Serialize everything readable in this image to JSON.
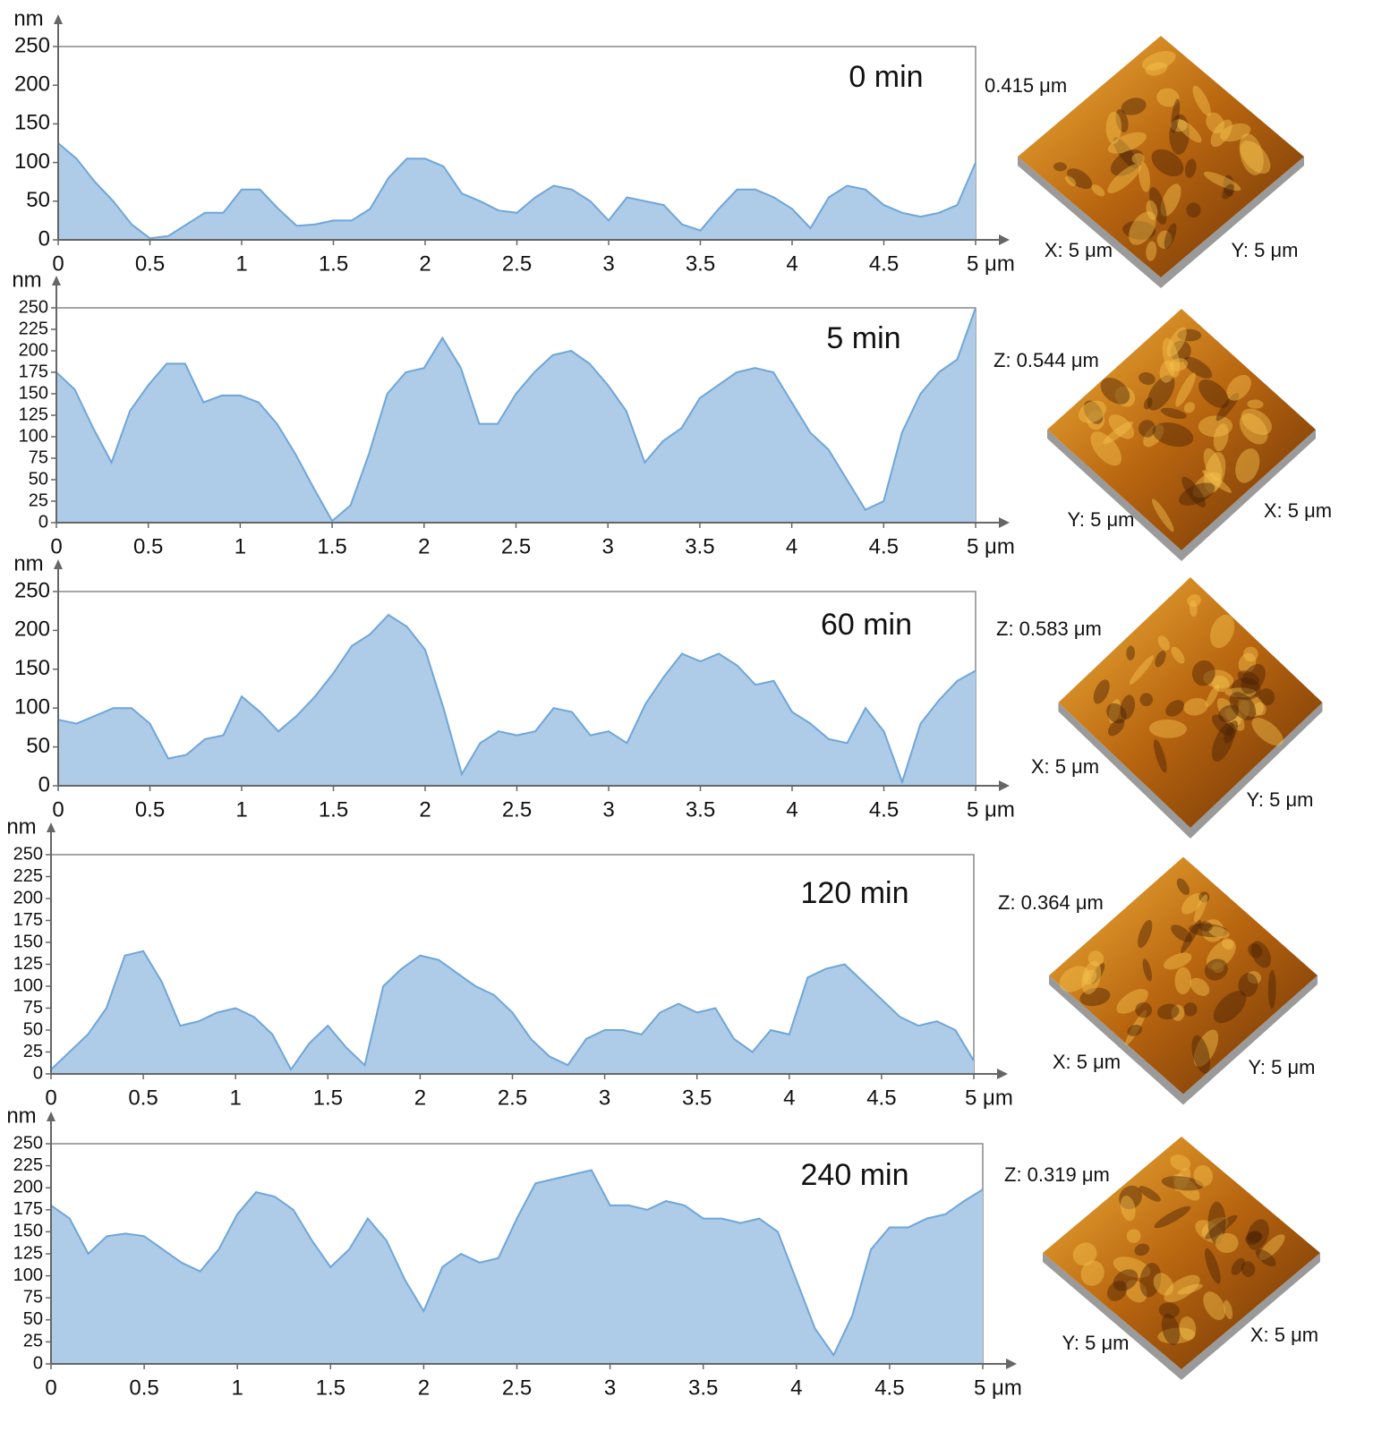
{
  "chart_data": [
    {
      "type": "area",
      "title": "0 min",
      "ylabel": "nm",
      "color": "#6fa6d8",
      "fill": "#aecbe8",
      "xlim": [
        0,
        5
      ],
      "ylim": [
        0,
        250
      ],
      "xticks": [
        0,
        0.5,
        1,
        1.5,
        2,
        2.5,
        3,
        3.5,
        4,
        4.5,
        {
          "value": 5,
          "label": "5 μm"
        }
      ],
      "yticks": [
        0,
        50,
        100,
        150,
        200,
        250
      ],
      "x": [
        0,
        0.1,
        0.2,
        0.3,
        0.4,
        0.5,
        0.6,
        0.7,
        0.8,
        0.9,
        1,
        1.1,
        1.2,
        1.3,
        1.4,
        1.5,
        1.6,
        1.7,
        1.8,
        1.9,
        2,
        2.1,
        2.2,
        2.3,
        2.4,
        2.5,
        2.6,
        2.7,
        2.8,
        2.9,
        3,
        3.1,
        3.2,
        3.3,
        3.4,
        3.5,
        3.6,
        3.7,
        3.8,
        3.9,
        4,
        4.1,
        4.2,
        4.3,
        4.4,
        4.5,
        4.6,
        4.7,
        4.8,
        4.9,
        5
      ],
      "values": [
        125,
        105,
        75,
        50,
        20,
        2,
        5,
        20,
        35,
        35,
        65,
        65,
        40,
        18,
        20,
        25,
        25,
        40,
        80,
        105,
        105,
        95,
        60,
        50,
        38,
        35,
        55,
        70,
        65,
        50,
        25,
        55,
        50,
        45,
        20,
        12,
        40,
        65,
        65,
        55,
        40,
        15,
        55,
        70,
        65,
        45,
        35,
        30,
        35,
        45,
        100
      ],
      "annotations": [
        "0.415 μm",
        "X: 5 μm",
        "Y: 5 μm"
      ]
    },
    {
      "type": "area",
      "title": "5 min",
      "ylabel": "nm",
      "color": "#6fa6d8",
      "fill": "#aecbe8",
      "xlim": [
        0,
        5
      ],
      "ylim": [
        0,
        250
      ],
      "xticks": [
        0,
        0.5,
        1,
        1.5,
        2,
        2.5,
        3,
        3.5,
        4,
        4.5,
        {
          "value": 5,
          "label": "5 μm"
        }
      ],
      "yticks": [
        0,
        25,
        50,
        75,
        100,
        125,
        150,
        175,
        200,
        225,
        250
      ],
      "x": [
        0,
        0.1,
        0.2,
        0.3,
        0.4,
        0.5,
        0.6,
        0.7,
        0.8,
        0.9,
        1,
        1.1,
        1.2,
        1.3,
        1.4,
        1.5,
        1.6,
        1.7,
        1.8,
        1.9,
        2,
        2.1,
        2.2,
        2.3,
        2.4,
        2.5,
        2.6,
        2.7,
        2.8,
        2.9,
        3,
        3.1,
        3.2,
        3.3,
        3.4,
        3.5,
        3.6,
        3.7,
        3.8,
        3.9,
        4,
        4.1,
        4.2,
        4.3,
        4.4,
        4.5,
        4.6,
        4.7,
        4.8,
        4.9,
        5
      ],
      "values": [
        175,
        155,
        110,
        70,
        130,
        160,
        185,
        185,
        140,
        148,
        148,
        140,
        115,
        80,
        40,
        2,
        20,
        80,
        150,
        175,
        180,
        215,
        180,
        115,
        115,
        150,
        175,
        195,
        200,
        185,
        160,
        130,
        70,
        95,
        110,
        145,
        160,
        175,
        180,
        175,
        140,
        105,
        85,
        50,
        15,
        25,
        105,
        150,
        175,
        190,
        250
      ],
      "annotations": [
        "Z: 0.544 μm",
        "Y: 5 μm",
        "X: 5 μm"
      ]
    },
    {
      "type": "area",
      "title": "60 min",
      "ylabel": "nm",
      "color": "#6fa6d8",
      "fill": "#aecbe8",
      "xlim": [
        0,
        5
      ],
      "ylim": [
        0,
        250
      ],
      "xticks": [
        0,
        0.5,
        1,
        1.5,
        2,
        2.5,
        3,
        3.5,
        4,
        4.5,
        {
          "value": 5,
          "label": "5 μm"
        }
      ],
      "yticks": [
        0,
        50,
        100,
        150,
        200,
        250
      ],
      "x": [
        0,
        0.1,
        0.2,
        0.3,
        0.4,
        0.5,
        0.6,
        0.7,
        0.8,
        0.9,
        1,
        1.1,
        1.2,
        1.3,
        1.4,
        1.5,
        1.6,
        1.7,
        1.8,
        1.9,
        2,
        2.1,
        2.2,
        2.3,
        2.4,
        2.5,
        2.6,
        2.7,
        2.8,
        2.9,
        3,
        3.1,
        3.2,
        3.3,
        3.4,
        3.5,
        3.6,
        3.7,
        3.8,
        3.9,
        4,
        4.1,
        4.2,
        4.3,
        4.4,
        4.5,
        4.6,
        4.7,
        4.8,
        4.9,
        5
      ],
      "values": [
        85,
        80,
        90,
        100,
        100,
        80,
        35,
        40,
        60,
        65,
        115,
        95,
        70,
        90,
        115,
        145,
        180,
        195,
        220,
        205,
        175,
        100,
        15,
        55,
        70,
        65,
        70,
        100,
        95,
        65,
        70,
        55,
        105,
        140,
        170,
        160,
        170,
        155,
        130,
        135,
        95,
        80,
        60,
        55,
        100,
        70,
        5,
        80,
        110,
        135,
        148
      ],
      "annotations": [
        "Z: 0.583 μm",
        "X: 5 μm",
        "Y: 5 μm"
      ]
    },
    {
      "type": "area",
      "title": "120 min",
      "ylabel": "nm",
      "color": "#6fa6d8",
      "fill": "#aecbe8",
      "xlim": [
        0,
        5
      ],
      "ylim": [
        0,
        250
      ],
      "xticks": [
        0,
        0.5,
        1,
        1.5,
        2,
        2.5,
        3,
        3.5,
        4,
        4.5,
        {
          "value": 5,
          "label": "5 μm"
        }
      ],
      "yticks": [
        0,
        25,
        50,
        75,
        100,
        125,
        150,
        175,
        200,
        225,
        250
      ],
      "x": [
        0,
        0.1,
        0.2,
        0.3,
        0.4,
        0.5,
        0.6,
        0.7,
        0.8,
        0.9,
        1,
        1.1,
        1.2,
        1.3,
        1.4,
        1.5,
        1.6,
        1.7,
        1.8,
        1.9,
        2,
        2.1,
        2.2,
        2.3,
        2.4,
        2.5,
        2.6,
        2.7,
        2.8,
        2.9,
        3,
        3.1,
        3.2,
        3.3,
        3.4,
        3.5,
        3.6,
        3.7,
        3.8,
        3.9,
        4,
        4.1,
        4.2,
        4.3,
        4.4,
        4.5,
        4.6,
        4.7,
        4.8,
        4.9,
        5
      ],
      "values": [
        5,
        25,
        45,
        75,
        135,
        140,
        105,
        55,
        60,
        70,
        75,
        65,
        45,
        5,
        35,
        55,
        30,
        10,
        100,
        120,
        135,
        130,
        115,
        100,
        90,
        70,
        40,
        20,
        10,
        40,
        50,
        50,
        45,
        70,
        80,
        70,
        75,
        40,
        25,
        50,
        45,
        110,
        120,
        125,
        105,
        85,
        65,
        55,
        60,
        50,
        15
      ],
      "annotations": [
        "Z: 0.364 μm",
        "X: 5 μm",
        "Y: 5 μm"
      ]
    },
    {
      "type": "area",
      "title": "240 min",
      "ylabel": "nm",
      "color": "#6fa6d8",
      "fill": "#aecbe8",
      "xlim": [
        0,
        5
      ],
      "ylim": [
        0,
        250
      ],
      "xticks": [
        0,
        0.5,
        1,
        1.5,
        2,
        2.5,
        3,
        3.5,
        4,
        4.5,
        {
          "value": 5,
          "label": "5 μm"
        }
      ],
      "yticks": [
        0,
        25,
        50,
        75,
        100,
        125,
        150,
        175,
        200,
        225,
        250
      ],
      "x": [
        0,
        0.1,
        0.2,
        0.3,
        0.4,
        0.5,
        0.6,
        0.7,
        0.8,
        0.9,
        1,
        1.1,
        1.2,
        1.3,
        1.4,
        1.5,
        1.6,
        1.7,
        1.8,
        1.9,
        2,
        2.1,
        2.2,
        2.3,
        2.4,
        2.5,
        2.6,
        2.7,
        2.8,
        2.9,
        3,
        3.1,
        3.2,
        3.3,
        3.4,
        3.5,
        3.6,
        3.7,
        3.8,
        3.9,
        4,
        4.1,
        4.2,
        4.3,
        4.4,
        4.5,
        4.6,
        4.7,
        4.8,
        4.9,
        5
      ],
      "values": [
        180,
        165,
        125,
        145,
        148,
        145,
        130,
        115,
        105,
        130,
        170,
        195,
        190,
        175,
        140,
        110,
        130,
        165,
        140,
        95,
        60,
        110,
        125,
        115,
        120,
        165,
        205,
        210,
        215,
        220,
        180,
        180,
        175,
        185,
        180,
        165,
        165,
        160,
        165,
        150,
        95,
        40,
        10,
        55,
        130,
        155,
        155,
        165,
        170,
        185,
        198
      ],
      "annotations": [
        "Z: 0.319 μm",
        "Y: 5 μm",
        "X: 5 μm"
      ]
    }
  ]
}
